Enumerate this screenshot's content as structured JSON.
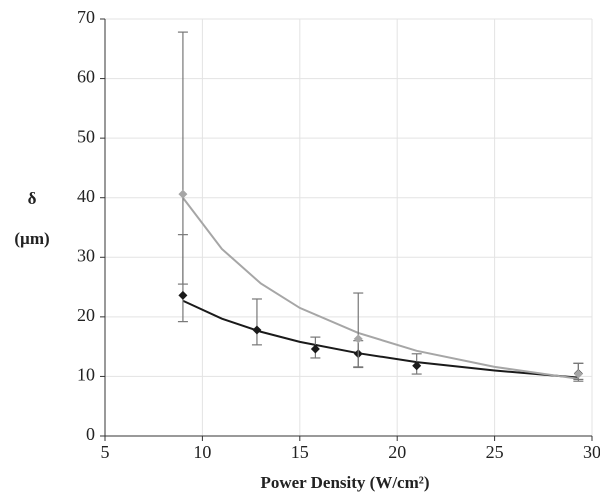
{
  "chart_data": {
    "type": "scatter",
    "xlabel": "Power Density (W/cm²)",
    "ylabel": [
      "δ",
      "(µm)"
    ],
    "xlim": [
      5,
      30
    ],
    "xticks": [
      5,
      10,
      15,
      20,
      25,
      30
    ],
    "ylim": [
      0,
      70
    ],
    "yticks": [
      0,
      10,
      20,
      30,
      40,
      50,
      60,
      70
    ],
    "grid": true,
    "series": [
      {
        "color": "#1a1a1a",
        "marker": "diamond",
        "x": [
          9.0,
          12.8,
          15.8,
          18.0,
          21.0,
          29.3
        ],
        "values": [
          23.6,
          17.8,
          14.6,
          13.8,
          11.8,
          10.5
        ],
        "err_plus": [
          10.2,
          5.2,
          2.0,
          2.2,
          2.0,
          1.7
        ],
        "err_minus": [
          4.4,
          2.5,
          1.5,
          2.2,
          1.4,
          1.3
        ]
      },
      {
        "color": "#a6a6a6",
        "marker": "diamond",
        "x": [
          9.0,
          18.0,
          29.3
        ],
        "values": [
          40.6,
          16.3,
          10.4
        ],
        "err_plus": [
          27.2,
          7.7,
          1.8
        ],
        "err_minus": [
          15.1,
          4.8,
          0.9
        ]
      }
    ],
    "trendlines": [
      {
        "color": "#1a1a1a",
        "x": [
          9,
          11,
          13,
          15,
          18,
          21,
          25,
          29.3
        ],
        "values": [
          22.7,
          19.7,
          17.5,
          15.8,
          13.9,
          12.4,
          11.0,
          9.8
        ]
      },
      {
        "color": "#a6a6a6",
        "x": [
          9,
          11,
          13,
          15,
          18,
          21,
          25,
          29.3
        ],
        "values": [
          40.0,
          31.4,
          25.6,
          21.5,
          17.3,
          14.3,
          11.6,
          9.6
        ]
      }
    ],
    "error_color": "#777777"
  }
}
